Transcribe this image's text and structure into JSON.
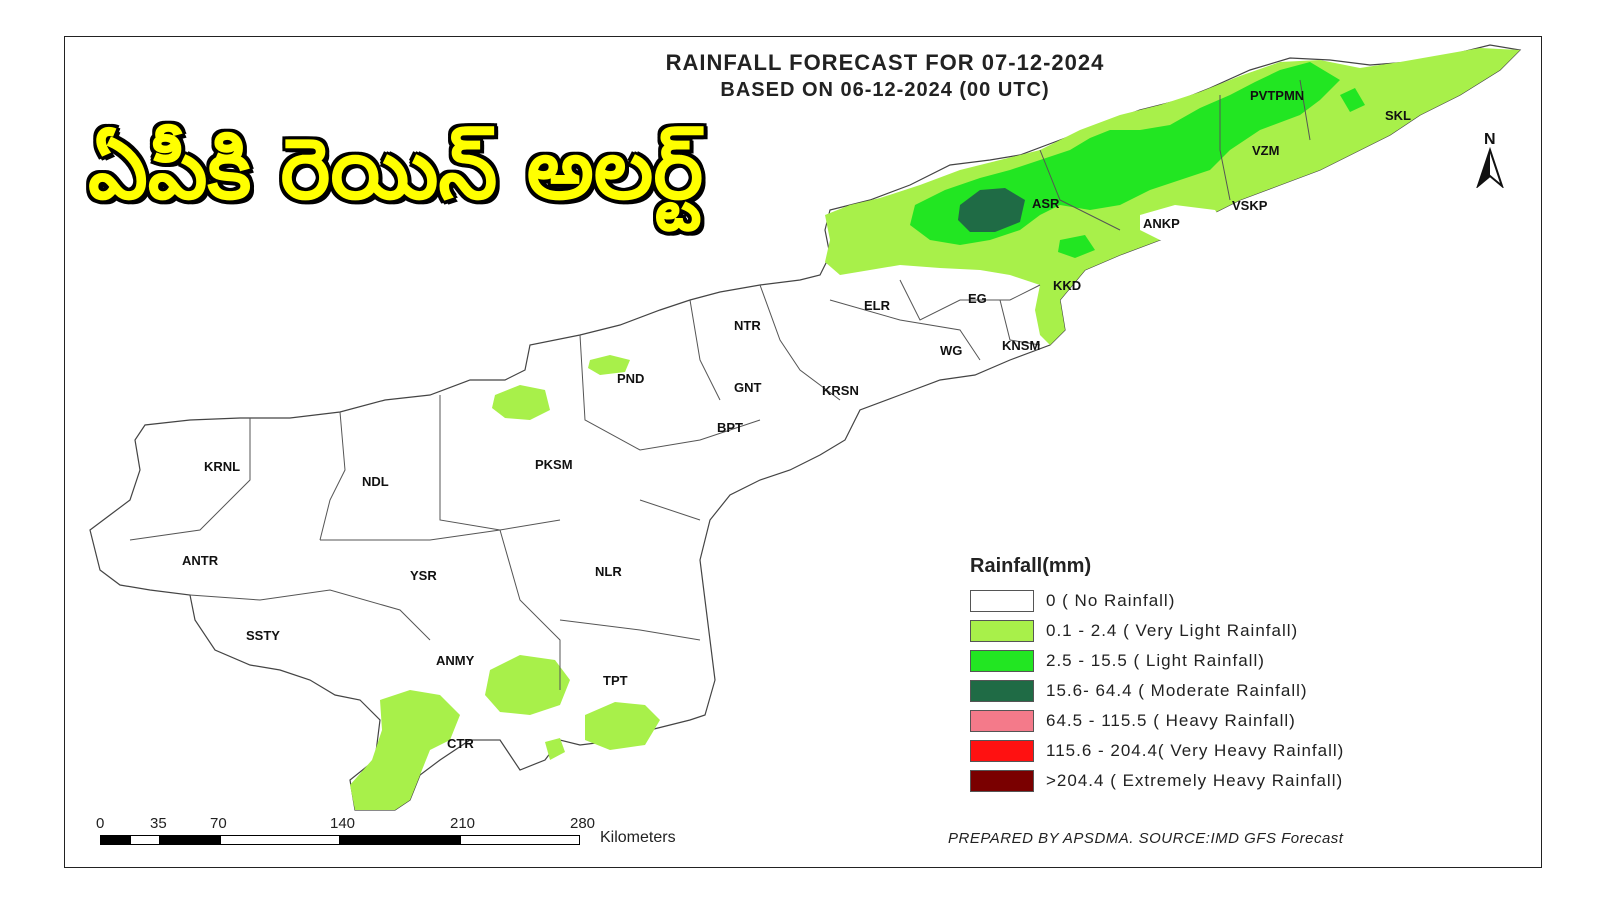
{
  "title": "RAINFALL FORECAST FOR 07-12-2024",
  "subtitle": "BASED ON 06-12-2024 (00 UTC)",
  "headline": "ఏపీకి రెయిన్ అలర్ట్",
  "north_label": "N",
  "districts": [
    "PVTPMN",
    "SKL",
    "VZM",
    "ASR",
    "VSKP",
    "ANKP",
    "KKD",
    "EG",
    "ELR",
    "NTR",
    "KNSM",
    "WG",
    "KRSN",
    "PND",
    "GNT",
    "BPT",
    "KRNL",
    "NDL",
    "PKSM",
    "ANTR",
    "YSR",
    "NLR",
    "SSTY",
    "ANMY",
    "TPT",
    "CTR"
  ],
  "legend": {
    "title": "Rainfall(mm)",
    "items": [
      {
        "label": "0 ( No Rainfall)",
        "color": "#ffffff"
      },
      {
        "label": "0.1 - 2.4 ( Very Light Rainfall)",
        "color": "#a8f04a"
      },
      {
        "label": "2.5 - 15.5 ( Light Rainfall)",
        "color": "#22e622"
      },
      {
        "label": "15.6- 64.4 ( Moderate Rainfall)",
        "color": "#1f6b45"
      },
      {
        "label": "64.5 - 115.5 ( Heavy Rainfall)",
        "color": "#f47a8a"
      },
      {
        "label": "115.6 - 204.4( Very Heavy Rainfall)",
        "color": "#ff1111"
      },
      {
        "label": ">204.4 ( Extremely Heavy Rainfall)",
        "color": "#7a0000"
      }
    ]
  },
  "scale": {
    "ticks": [
      "0",
      "35",
      "70",
      "140",
      "210",
      "280"
    ],
    "unit": "Kilometers"
  },
  "credit": "PREPARED BY APSDMA. SOURCE:IMD GFS Forecast"
}
